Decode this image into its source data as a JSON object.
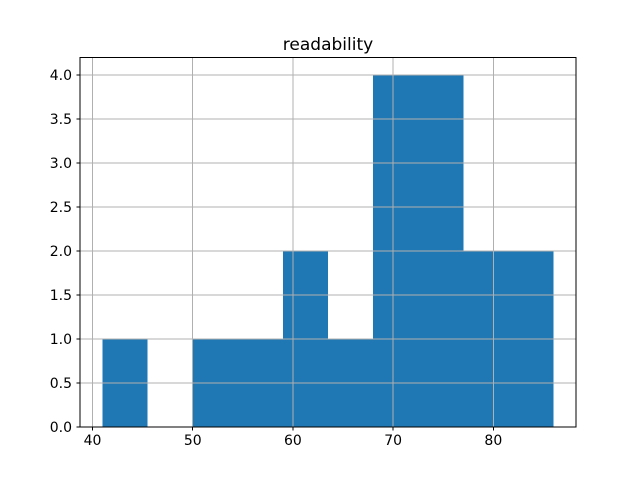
{
  "figure": {
    "background": "#ffffff"
  },
  "chart_data": {
    "type": "histogram",
    "title": "readability",
    "bin_edges": [
      41,
      45.5,
      50,
      54.5,
      59,
      63.5,
      68,
      72.5,
      77,
      81.5,
      86
    ],
    "counts": [
      1,
      0,
      1,
      1,
      2,
      1,
      4,
      4,
      2,
      2
    ],
    "xlabel": "",
    "ylabel": "",
    "xlim": [
      38.75,
      88.25
    ],
    "ylim": [
      0,
      4.2
    ],
    "x_ticks": [
      40,
      50,
      60,
      70,
      80
    ],
    "x_tick_labels": [
      "40",
      "50",
      "60",
      "70",
      "80"
    ],
    "y_ticks": [
      0,
      0.5,
      1,
      1.5,
      2,
      2.5,
      3,
      3.5,
      4
    ],
    "y_tick_labels": [
      "0.0",
      "0.5",
      "1.0",
      "1.5",
      "2.0",
      "2.5",
      "3.0",
      "3.5",
      "4.0"
    ],
    "grid": true,
    "grid_above_bars": true,
    "legend": false,
    "colors": {
      "bar": "#1f77b4",
      "grid": "#b0b0b0",
      "spine": "#000000",
      "tick": "#000000",
      "text": "#000000",
      "background": "#ffffff"
    }
  }
}
